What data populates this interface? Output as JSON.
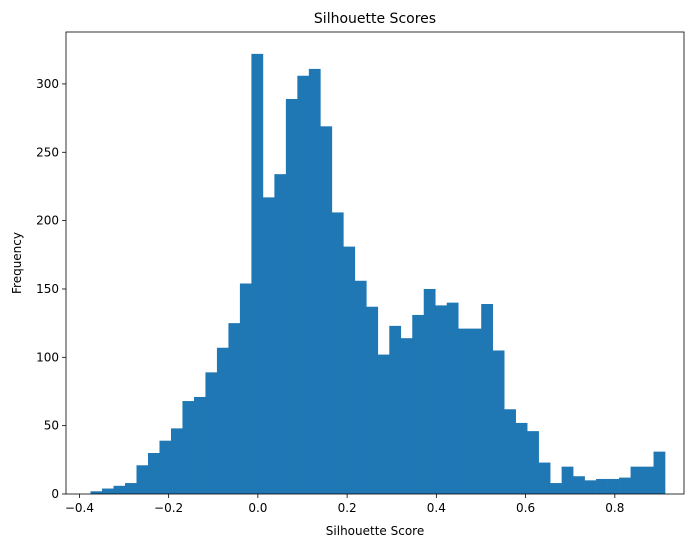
{
  "chart_data": {
    "type": "bar",
    "subtype": "histogram",
    "title": "Silhouette Scores",
    "xlabel": "Silhouette Score",
    "ylabel": "Frequency",
    "xlim": [
      -0.43,
      0.955
    ],
    "ylim": [
      0,
      338
    ],
    "bin_start": -0.375,
    "bin_width": 0.02575,
    "x_ticks": [
      -0.4,
      -0.2,
      0.0,
      0.2,
      0.4,
      0.6,
      0.8
    ],
    "x_tick_labels": [
      "−0.4",
      "−0.2",
      "0.0",
      "0.2",
      "0.4",
      "0.6",
      "0.8"
    ],
    "y_ticks": [
      0,
      50,
      100,
      150,
      200,
      250,
      300
    ],
    "y_tick_labels": [
      "0",
      "50",
      "100",
      "150",
      "200",
      "250",
      "300"
    ],
    "counts": [
      2,
      4,
      6,
      8,
      21,
      30,
      39,
      48,
      68,
      71,
      89,
      107,
      125,
      154,
      322,
      217,
      234,
      289,
      306,
      311,
      269,
      206,
      181,
      156,
      137,
      102,
      123,
      114,
      131,
      150,
      138,
      140,
      121,
      121,
      139,
      105,
      62,
      52,
      46,
      23,
      8,
      20,
      13,
      10,
      11,
      11,
      12,
      20,
      20,
      31
    ],
    "color": "#1f77b4",
    "grid": false
  }
}
